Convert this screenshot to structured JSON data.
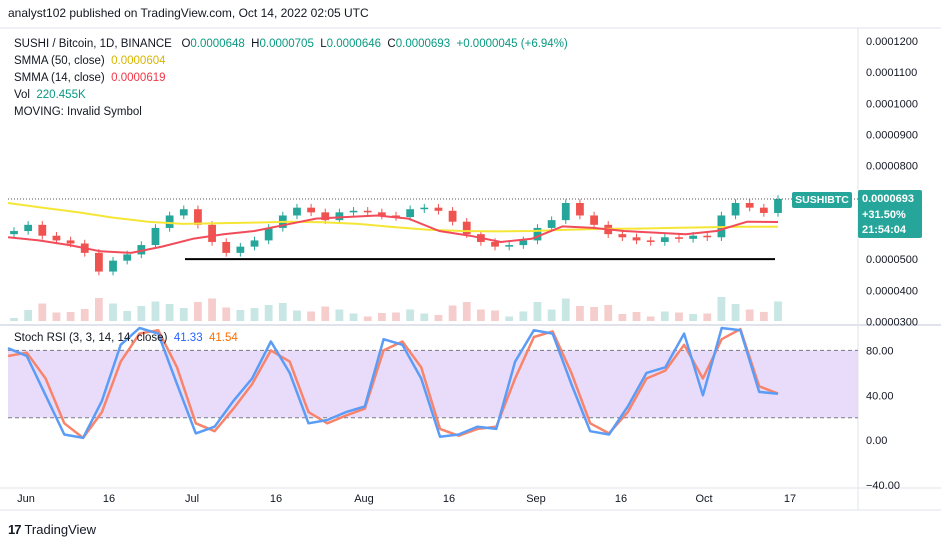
{
  "header": {
    "publish_line": "analyst102 published on TradingView.com, Oct 14, 2022 02:05 UTC"
  },
  "legend": {
    "symbol": "SUSHI / Bitcoin, 1D, BINANCE",
    "o_label": "O",
    "o_val": "0.0000648",
    "h_label": "H",
    "h_val": "0.0000705",
    "l_label": "L",
    "l_val": "0.0000646",
    "c_label": "C",
    "c_val": "0.0000693",
    "change": "+0.0000045 (+6.94%)",
    "sma50_label": "SMMA (50, close)",
    "sma50_val": "0.0000604",
    "sma14_label": "SMMA (14, close)",
    "sma14_val": "0.0000619",
    "vol_label": "Vol",
    "vol_val": "220.455K",
    "moving_line": "MOVING: Invalid Symbol"
  },
  "price_label": {
    "ticker": "SUSHIBTC",
    "price": "0.0000693",
    "pct": "+31.50%",
    "countdown": "21:54:04"
  },
  "rsi_legend": {
    "label": "Stoch RSI (3, 3, 14, 14, close)",
    "k": "41.33",
    "d": "41.54"
  },
  "brand": {
    "logo": "17",
    "name": "TradingView"
  },
  "colors": {
    "up": "#26a69a",
    "down": "#ef5350",
    "sma50": "#f5e636",
    "sma14": "#f24b5a",
    "k": "#5b9cf6",
    "d": "#f7846b",
    "band": "#e1d0fa"
  },
  "chart_data": [
    {
      "type": "candlestick",
      "title": "SUSHI / Bitcoin, 1D, BINANCE",
      "y_ticks": [
        "0.0001200",
        "0.0001100",
        "0.0001000",
        "0.0000900",
        "0.0000800",
        "0.0000500",
        "0.0000400",
        "0.0000300"
      ],
      "ylim": [
        2.95e-05,
        0.0001235
      ],
      "x_ticks": [
        "Jun",
        "16",
        "Jul",
        "16",
        "Aug",
        "16",
        "Sep",
        "16",
        "Oct",
        "17"
      ],
      "support_level": 5e-05,
      "close": [
        5.9e-05,
        6.1e-05,
        5.75e-05,
        5.6e-05,
        5.5e-05,
        5.2e-05,
        4.6e-05,
        4.95e-05,
        5.15e-05,
        5.45e-05,
        6e-05,
        6.4e-05,
        6.6e-05,
        6.1e-05,
        5.55e-05,
        5.2e-05,
        5.4e-05,
        5.6e-05,
        6e-05,
        6.4e-05,
        6.65e-05,
        6.5e-05,
        6.25e-05,
        6.5e-05,
        6.55e-05,
        6.5e-05,
        6.4e-05,
        6.35e-05,
        6.6e-05,
        6.65e-05,
        6.55e-05,
        6.2e-05,
        5.8e-05,
        5.55e-05,
        5.4e-05,
        5.45e-05,
        5.6e-05,
        6e-05,
        6.25e-05,
        6.8e-05,
        6.4e-05,
        6.1e-05,
        5.8e-05,
        5.7e-05,
        5.6e-05,
        5.55e-05,
        5.7e-05,
        5.65e-05,
        5.75e-05,
        5.7e-05,
        6.4e-05,
        6.8e-05,
        6.65e-05,
        6.48e-05,
        6.93e-05
      ],
      "smma50": [
        6.8e-05,
        6.65e-05,
        6.5e-05,
        6.33e-05,
        6.2e-05,
        6.13e-05,
        6.15e-05,
        6.17e-05,
        6.2e-05,
        6.18e-05,
        6.13e-05,
        6.03e-05,
        5.94e-05,
        5.9e-05,
        5.89e-05,
        5.9e-05,
        5.94e-05,
        5.97e-05,
        5.98e-05,
        6e-05,
        6.02e-05,
        6.04e-05,
        6.04e-05
      ],
      "smma14": [
        5.7e-05,
        5.6e-05,
        5.45e-05,
        5.25e-05,
        5.2e-05,
        5.4e-05,
        5.65e-05,
        5.8e-05,
        5.9e-05,
        6.1e-05,
        6.3e-05,
        6.35e-05,
        6.4e-05,
        6.3e-05,
        5.9e-05,
        5.75e-05,
        5.55e-05,
        5.65e-05,
        6.05e-05,
        6e-05,
        5.9e-05,
        5.85e-05,
        5.8e-05,
        5.9e-05,
        6.2e-05,
        6.19e-05
      ]
    },
    {
      "type": "line",
      "title": "Stoch RSI (3, 3, 14, 14, close)",
      "y_ticks": [
        "80.00",
        "40.00",
        "0.00",
        "−40.00"
      ],
      "ylim": [
        -40,
        100
      ],
      "band": [
        20,
        80
      ],
      "series": [
        {
          "name": "K",
          "values": [
            82,
            75,
            40,
            5,
            2,
            35,
            85,
            100,
            95,
            50,
            6,
            12,
            35,
            55,
            88,
            60,
            15,
            18,
            25,
            30,
            90,
            85,
            55,
            3,
            5,
            12,
            10,
            70,
            98,
            95,
            50,
            8,
            5,
            30,
            60,
            65,
            95,
            40,
            100,
            98,
            43,
            41.33
          ]
        },
        {
          "name": "D",
          "values": [
            75,
            78,
            55,
            15,
            2,
            25,
            70,
            95,
            98,
            65,
            15,
            8,
            28,
            50,
            80,
            70,
            25,
            15,
            22,
            28,
            80,
            88,
            65,
            10,
            4,
            10,
            12,
            55,
            92,
            97,
            60,
            15,
            6,
            25,
            55,
            62,
            85,
            55,
            90,
            99,
            48,
            41.54
          ]
        }
      ]
    }
  ]
}
